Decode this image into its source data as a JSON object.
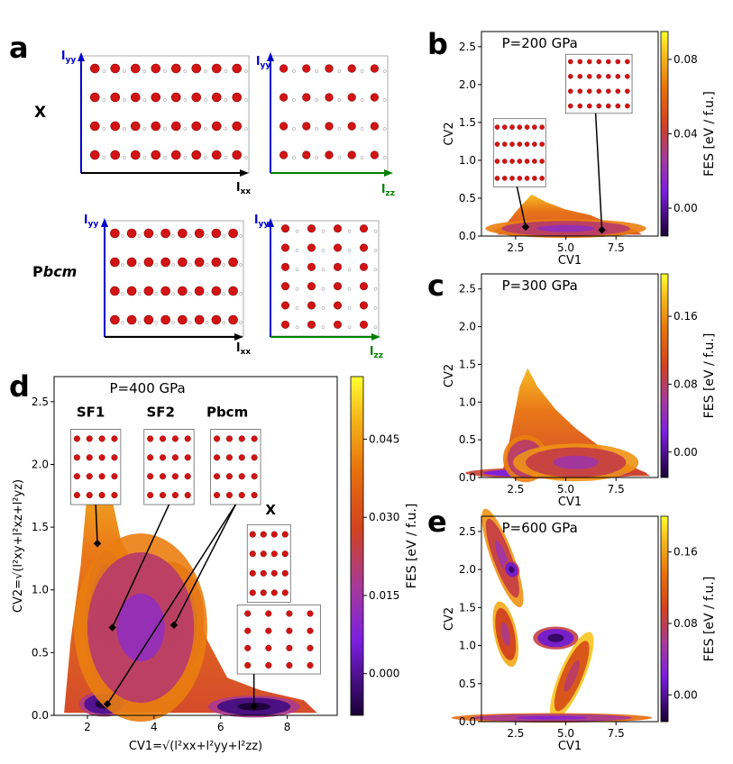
{
  "figure": {
    "panel_letters": [
      "a",
      "b",
      "c",
      "d",
      "e"
    ],
    "structures_panel": {
      "row_labels": [
        "X",
        "Pbcm"
      ],
      "row2_label_parts": [
        "P",
        "bcm"
      ],
      "axis_labels": {
        "yy": "l",
        "yy_sub": "yy",
        "xx": "l",
        "xx_sub": "xx",
        "zz": "l",
        "zz_sub": "zz"
      }
    },
    "colorbar_label": "FES [eV / f.u.]"
  },
  "chart_data": [
    {
      "id": "b",
      "type": "heatmap",
      "title": "P=200 GPa",
      "xlabel": "CV1",
      "ylabel": "CV2",
      "xlim": [
        0.8,
        9.6
      ],
      "ylim": [
        0.0,
        2.7
      ],
      "xticks": [
        2.5,
        5.0,
        7.5
      ],
      "xticklabels": [
        "2.5",
        "5.0",
        "7.5"
      ],
      "yticks": [
        0.0,
        0.5,
        1.0,
        1.5,
        2.0,
        2.5
      ],
      "yticklabels": [
        "0.0",
        "0.5",
        "1.0",
        "1.5",
        "2.0",
        "2.5"
      ],
      "colorbar": {
        "min": -0.015,
        "max": 0.095,
        "ticks": [
          0.0,
          0.04,
          0.08
        ],
        "ticklabels": [
          "0.00",
          "0.04",
          "0.08"
        ]
      },
      "minima": [
        {
          "cv1": 3.0,
          "cv2": 0.12
        },
        {
          "cv1": 6.8,
          "cv2": 0.08
        }
      ]
    },
    {
      "id": "c",
      "type": "heatmap",
      "title": "P=300 GPa",
      "xlabel": "CV1",
      "ylabel": "CV2",
      "xlim": [
        0.8,
        9.6
      ],
      "ylim": [
        0.0,
        2.7
      ],
      "xticks": [
        2.5,
        5.0,
        7.5
      ],
      "xticklabels": [
        "2.5",
        "5.0",
        "7.5"
      ],
      "yticks": [
        0.0,
        0.5,
        1.0,
        1.5,
        2.0,
        2.5
      ],
      "yticklabels": [
        "0.0",
        "0.5",
        "1.0",
        "1.5",
        "2.0",
        "2.5"
      ],
      "colorbar": {
        "min": -0.03,
        "max": 0.21,
        "ticks": [
          0.0,
          0.08,
          0.16
        ],
        "ticklabels": [
          "0.00",
          "0.08",
          "0.16"
        ]
      }
    },
    {
      "id": "d",
      "type": "heatmap",
      "title": "P=400 GPa",
      "xlabel": "CV1=√(l²xx+l²yy+l²zz)",
      "ylabel": "CV2=√(l²xy+l²xz+l²yz)",
      "xlim": [
        1.0,
        9.5
      ],
      "ylim": [
        0.0,
        2.7
      ],
      "xticks": [
        2,
        4,
        6,
        8
      ],
      "xticklabels": [
        "2",
        "4",
        "6",
        "8"
      ],
      "yticks": [
        0.0,
        0.5,
        1.0,
        1.5,
        2.0,
        2.5
      ],
      "yticklabels": [
        "0.0",
        "0.5",
        "1.0",
        "1.5",
        "2.0",
        "2.5"
      ],
      "colorbar": {
        "min": -0.008,
        "max": 0.057,
        "ticks": [
          0.0,
          0.015,
          0.03,
          0.045
        ],
        "ticklabels": [
          "0.000",
          "0.015",
          "0.030",
          "0.045"
        ]
      },
      "annotations": [
        "SF1",
        "SF2",
        "Pbcm",
        "X"
      ],
      "minima": [
        {
          "label": "SF1",
          "cv1": 2.3,
          "cv2": 1.37
        },
        {
          "label": "SF2",
          "cv1": 2.75,
          "cv2": 0.7
        },
        {
          "label": "Pbcm",
          "cv1": 4.6,
          "cv2": 0.72
        },
        {
          "label": "Pbcm",
          "cv1": 2.6,
          "cv2": 0.09
        },
        {
          "label": "X",
          "cv1": 7.0,
          "cv2": 0.07
        }
      ]
    },
    {
      "id": "e",
      "type": "heatmap",
      "title": "P=600 GPa",
      "xlabel": "CV1",
      "ylabel": "CV2",
      "xlim": [
        0.8,
        9.6
      ],
      "ylim": [
        0.0,
        2.7
      ],
      "xticks": [
        2.5,
        5.0,
        7.5
      ],
      "xticklabels": [
        "2.5",
        "5.0",
        "7.5"
      ],
      "yticks": [
        0.0,
        0.5,
        1.0,
        1.5,
        2.0,
        2.5
      ],
      "yticklabels": [
        "0.0",
        "0.5",
        "1.0",
        "1.5",
        "2.0",
        "2.5"
      ],
      "colorbar": {
        "min": -0.03,
        "max": 0.2,
        "ticks": [
          0.0,
          0.08,
          0.16
        ],
        "ticklabels": [
          "0.00",
          "0.08",
          "0.16"
        ]
      }
    }
  ]
}
